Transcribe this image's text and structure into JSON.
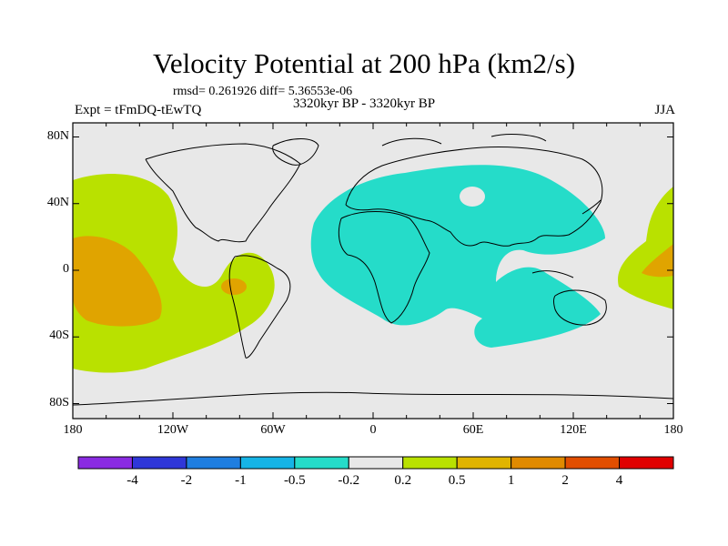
{
  "title": "Velocity Potential at 200 hPa (km2/s)",
  "stats": "rmsd= 0.261926 diff= 5.36553e-06",
  "experiment": "Expt = tFmDQ-tEwTQ",
  "period": "3320kyr BP - 3320kyr BP",
  "season": "JJA",
  "axes": {
    "lat_labels": [
      {
        "text": "80N",
        "lat": 80
      },
      {
        "text": "40N",
        "lat": 40
      },
      {
        "text": "0",
        "lat": 0
      },
      {
        "text": "40S",
        "lat": -40
      },
      {
        "text": "80S",
        "lat": -80
      }
    ],
    "lon_labels": [
      {
        "text": "180",
        "lon": -180
      },
      {
        "text": "120W",
        "lon": -120
      },
      {
        "text": "60W",
        "lon": -60
      },
      {
        "text": "0",
        "lon": 0
      },
      {
        "text": "60E",
        "lon": 60
      },
      {
        "text": "120E",
        "lon": 120
      },
      {
        "text": "180",
        "lon": 180
      }
    ]
  },
  "colorbar": {
    "colors": [
      "#8a2be2",
      "#2f37d8",
      "#1f7ee0",
      "#16b4e6",
      "#25dcc9",
      "#e8e8e8",
      "#b9e100",
      "#e0b400",
      "#e08a00",
      "#e14e00",
      "#e00000"
    ],
    "labels": [
      "-4",
      "-2",
      "-1",
      "-0.5",
      "-0.2",
      "0.2",
      "0.5",
      "1",
      "2",
      "4"
    ]
  },
  "colors": {
    "background_field": "#e8e8e8",
    "cyan": "#25dcc9",
    "yellowgreen": "#b9e100",
    "orange": "#e0a400",
    "coast": "#000000"
  }
}
